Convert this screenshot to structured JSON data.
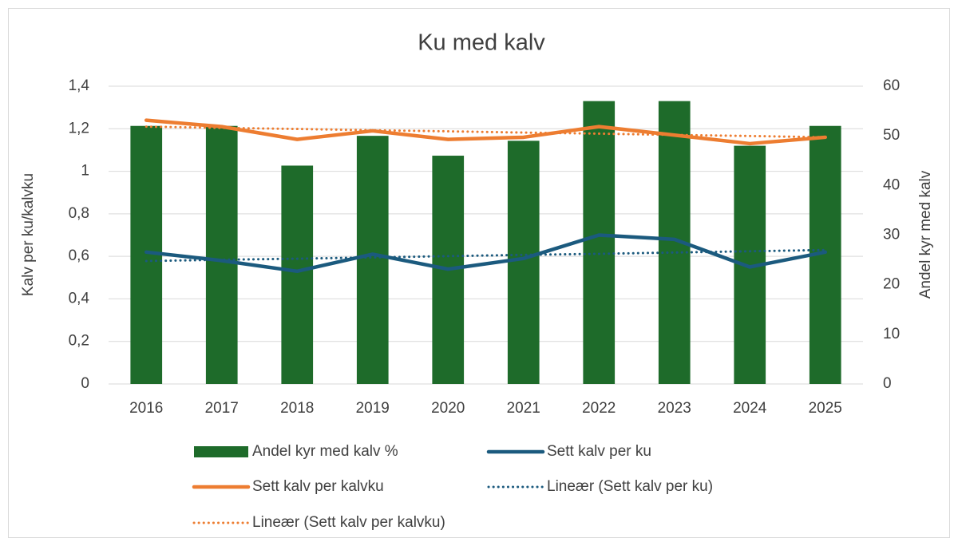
{
  "chart_data": {
    "type": "combo",
    "title": "Ku med kalv",
    "y_label": "Kalv per ku/kalvku",
    "y2_label": "Andel kyr med kalv",
    "categories": [
      "2016",
      "2017",
      "2018",
      "2019",
      "2020",
      "2021",
      "2022",
      "2023",
      "2024",
      "2025"
    ],
    "ylim": [
      0,
      1.4
    ],
    "yticks": [
      0,
      {
        "value": 0.2,
        "label": "0,2"
      },
      {
        "value": 0.4,
        "label": "0,4"
      },
      {
        "value": 0.6,
        "label": "0,6"
      },
      {
        "value": 0.8,
        "label": "0,8"
      },
      1,
      {
        "value": 1.2,
        "label": "1,2"
      },
      {
        "value": 1.4,
        "label": "1,4"
      }
    ],
    "y2lim": [
      0,
      60
    ],
    "y2ticks": [
      0,
      10,
      20,
      30,
      40,
      50,
      60
    ],
    "grid": true,
    "series": [
      {
        "name": "Andel kyr med kalv %",
        "type": "bar",
        "axis": "y2",
        "color": "#1e6b2a",
        "values": [
          52,
          52,
          44,
          50,
          46,
          49,
          57,
          57,
          48,
          52
        ]
      },
      {
        "name": "Sett kalv per ku",
        "type": "line",
        "color": "#1b5a7e",
        "values": [
          0.62,
          0.58,
          0.53,
          0.61,
          0.54,
          0.59,
          0.7,
          0.68,
          0.55,
          0.62
        ]
      },
      {
        "name": "Sett kalv per kalvku",
        "type": "line",
        "color": "#ed7d31",
        "values": [
          1.24,
          1.21,
          1.15,
          1.19,
          1.15,
          1.16,
          1.21,
          1.17,
          1.13,
          1.16
        ]
      },
      {
        "name": "Lineær (Sett kalv per ku)",
        "type": "line",
        "dashed": true,
        "color": "#1b5a7e",
        "values": [
          0.578,
          0.584,
          0.589,
          0.595,
          0.601,
          0.607,
          0.612,
          0.618,
          0.624,
          0.63
        ]
      },
      {
        "name": "Lineær (Sett kalv per kalvku)",
        "type": "line",
        "dashed": true,
        "color": "#ed7d31",
        "values": [
          1.21,
          1.204,
          1.199,
          1.193,
          1.188,
          1.182,
          1.177,
          1.171,
          1.166,
          1.16
        ]
      }
    ]
  }
}
